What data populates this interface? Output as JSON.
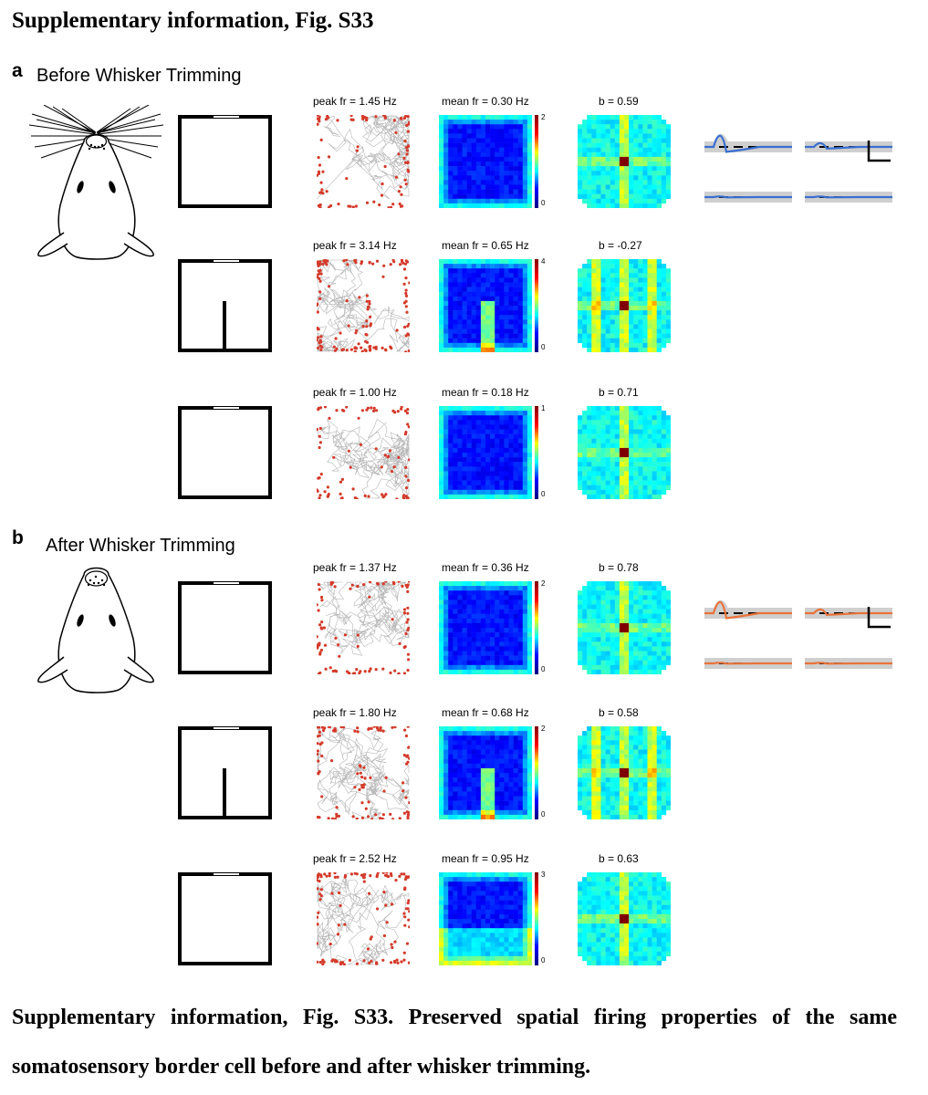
{
  "header": "Supplementary information, Fig. S33",
  "panels": [
    {
      "label": "a",
      "title": "Before Whisker Trimming",
      "rows": [
        {
          "peak": "peak fr = 1.45 Hz",
          "mean": "mean fr = 0.30 Hz",
          "b": "b = 0.59",
          "cbar_max": "2",
          "cbar_min": "0",
          "wall": false
        },
        {
          "peak": "peak fr = 3.14 Hz",
          "mean": "mean fr = 0.65 Hz",
          "b": "b = -0.27",
          "cbar_max": "4",
          "cbar_min": "0",
          "wall": true
        },
        {
          "peak": "peak fr = 1.00 Hz",
          "mean": "mean fr = 0.18 Hz",
          "b": "b = 0.71",
          "cbar_max": "1",
          "cbar_min": "0",
          "wall": false
        }
      ],
      "waveform_color": "#3a6fd0"
    },
    {
      "label": "b",
      "title": "After Whisker Trimming",
      "rows": [
        {
          "peak": "peak fr = 1.37 Hz",
          "mean": "mean fr = 0.36 Hz",
          "b": "b = 0.78",
          "cbar_max": "2",
          "cbar_min": "0",
          "wall": false
        },
        {
          "peak": "peak fr = 1.80 Hz",
          "mean": "mean fr = 0.68 Hz",
          "b": "b = 0.58",
          "cbar_max": "2",
          "cbar_min": "0",
          "wall": true
        },
        {
          "peak": "peak fr = 2.52 Hz",
          "mean": "mean fr = 0.95 Hz",
          "b": "b = 0.63",
          "cbar_max": "3",
          "cbar_min": "0",
          "wall": false
        }
      ],
      "waveform_color": "#e8733a"
    }
  ],
  "caption": "Supplementary information, Fig. S33. Preserved spatial firing properties of the same somatosensory border cell before and after whisker trimming."
}
